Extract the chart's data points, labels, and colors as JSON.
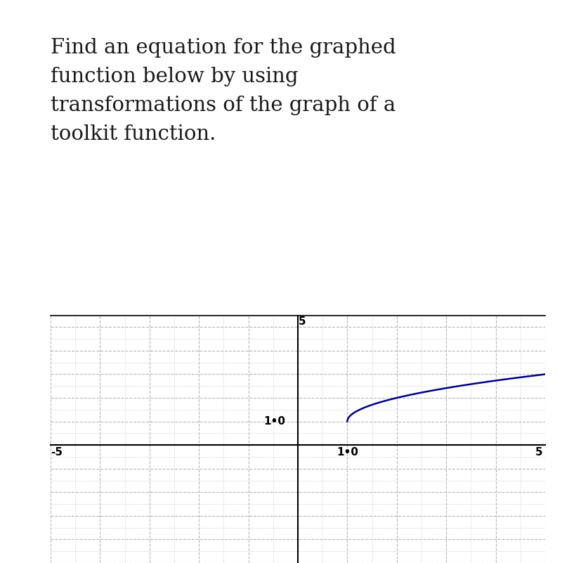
{
  "title_text": "Find an equation for the graphed\nfunction below by using\ntransformations of the graph of a\ntoolkit function.",
  "title_fontsize": 21,
  "title_color": "#1a1a1a",
  "background_color": "#ffffff",
  "ax_background": "#ffffff",
  "grid_color": "#aaaaaa",
  "curve_color": "#00008B",
  "curve_linewidth": 1.8,
  "x_start": 1.0,
  "x_shift": 1.0,
  "y_shift": 1.0,
  "xlim": [
    -5,
    5
  ],
  "ylim": [
    -5,
    5
  ],
  "x_axis_label_val": 1.0,
  "y_axis_label_val": 1.0,
  "fig_width": 8.0,
  "fig_height": 8.01,
  "dpi": 100,
  "grid_style": "--"
}
